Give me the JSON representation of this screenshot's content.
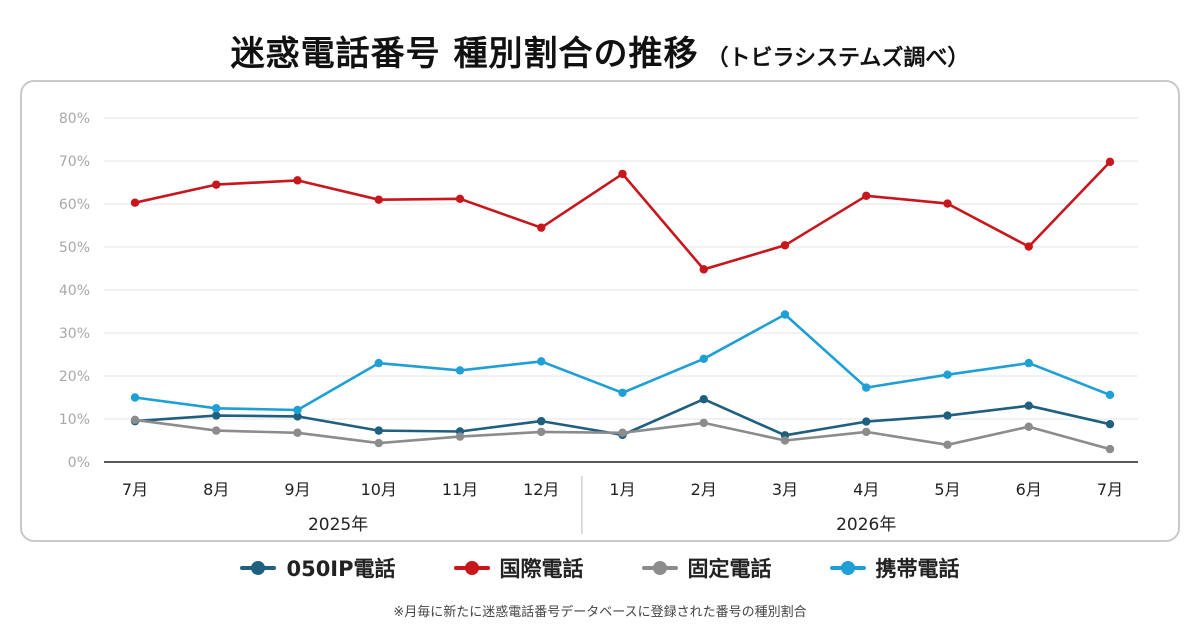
{
  "header": {
    "title": "迷惑電話番号 種別割合の推移",
    "subtitle": "（トビラシステムズ調べ）"
  },
  "footnote": "※月毎に新たに迷惑電話番号データベースに登録された番号の種別割合",
  "chart_data": {
    "type": "line",
    "categories": [
      "7月",
      "8月",
      "9月",
      "10月",
      "11月",
      "12月",
      "1月",
      "2月",
      "3月",
      "4月",
      "5月",
      "6月",
      "7月"
    ],
    "year_groups": [
      {
        "label": "2025年",
        "from": 0,
        "to": 5
      },
      {
        "label": "2026年",
        "from": 6,
        "to": 12
      }
    ],
    "ylim": [
      0,
      80
    ],
    "yticks": [
      0,
      10,
      20,
      30,
      40,
      50,
      60,
      70,
      80
    ],
    "ytick_labels": [
      "0%",
      "10%",
      "20%",
      "30%",
      "40%",
      "50%",
      "60%",
      "70%",
      "80%"
    ],
    "grid": true,
    "legend_position": "bottom",
    "series": [
      {
        "name": "050IP電話",
        "color": "#1f5f7f",
        "values": [
          9.5,
          10.8,
          10.6,
          7.3,
          7.1,
          9.5,
          6.3,
          14.6,
          6.2,
          9.4,
          10.8,
          13.1,
          8.8
        ]
      },
      {
        "name": "国際電話",
        "color": "#c8161d",
        "values": [
          60.3,
          64.5,
          65.5,
          61.0,
          61.2,
          54.5,
          67.0,
          44.8,
          50.4,
          61.9,
          60.1,
          50.1,
          69.8
        ]
      },
      {
        "name": "固定電話",
        "color": "#8c8c8c",
        "values": [
          9.8,
          7.3,
          6.8,
          4.4,
          5.9,
          7.0,
          6.8,
          9.1,
          5.0,
          7.0,
          4.0,
          8.2,
          3.0
        ]
      },
      {
        "name": "携帯電話",
        "color": "#1ea0d7",
        "values": [
          15.0,
          12.5,
          12.1,
          23.0,
          21.3,
          23.4,
          16.1,
          24.0,
          34.3,
          17.3,
          20.3,
          23.0,
          15.6
        ]
      }
    ]
  }
}
